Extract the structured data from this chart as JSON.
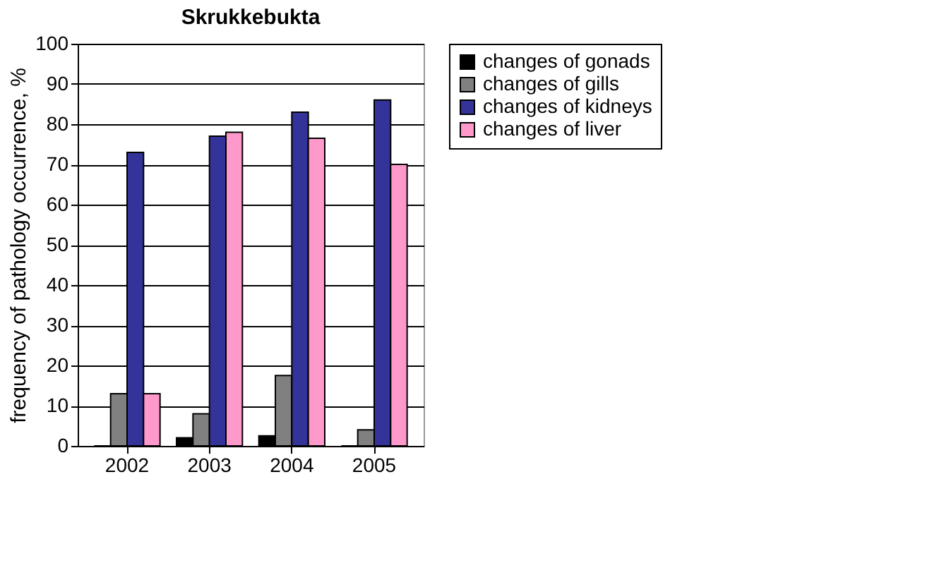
{
  "chart_data": {
    "type": "bar",
    "title": "Skrukkebukta",
    "ylabel": "frequency of pathology occurrence, %",
    "categories": [
      "2002",
      "2003",
      "2004",
      "2005"
    ],
    "series": [
      {
        "name": "changes of gonads",
        "color": "#000000",
        "values": [
          0,
          2,
          2.5,
          0
        ]
      },
      {
        "name": "changes of gills",
        "color": "#808080",
        "values": [
          13,
          8,
          17.5,
          4
        ]
      },
      {
        "name": "changes of kidneys",
        "color": "#333399",
        "values": [
          73,
          77,
          83,
          86
        ]
      },
      {
        "name": "changes of liver",
        "color": "#ff99cc",
        "values": [
          13,
          78,
          76.5,
          70
        ]
      }
    ],
    "ylim": [
      0,
      100
    ],
    "yticks": [
      0,
      10,
      20,
      30,
      40,
      50,
      60,
      70,
      80,
      90,
      100
    ],
    "grid": "y",
    "legend": "right"
  }
}
